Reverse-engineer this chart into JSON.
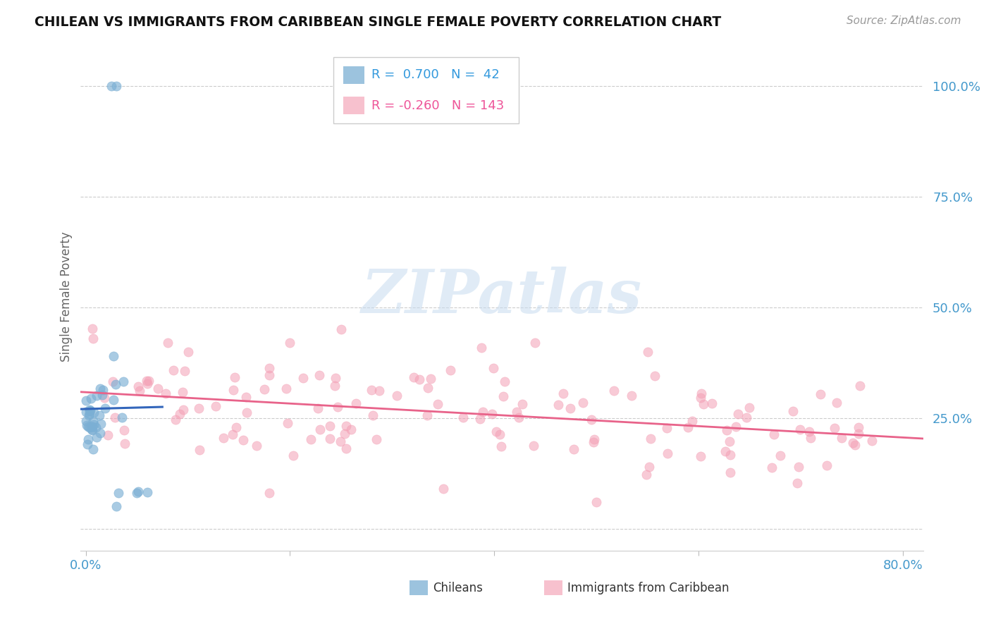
{
  "title": "CHILEAN VS IMMIGRANTS FROM CARIBBEAN SINGLE FEMALE POVERTY CORRELATION CHART",
  "source": "Source: ZipAtlas.com",
  "ylabel": "Single Female Poverty",
  "xlim": [
    -0.005,
    0.82
  ],
  "ylim": [
    -0.05,
    1.1
  ],
  "yticks": [
    0.0,
    0.25,
    0.5,
    0.75,
    1.0
  ],
  "ytick_labels": [
    "",
    "25.0%",
    "50.0%",
    "75.0%",
    "100.0%"
  ],
  "xticks": [
    0.0,
    0.2,
    0.4,
    0.6,
    0.8
  ],
  "xtick_labels": [
    "0.0%",
    "",
    "",
    "",
    "80.0%"
  ],
  "blue_R": 0.7,
  "blue_N": 42,
  "pink_R": -0.26,
  "pink_N": 143,
  "blue_color": "#7BAFD4",
  "pink_color": "#F4A0B5",
  "blue_line_color": "#3366BB",
  "pink_line_color": "#E8638A",
  "background_color": "#FFFFFF",
  "grid_color": "#CCCCCC",
  "title_color": "#111111",
  "legend_label_blue": "Chileans",
  "legend_label_pink": "Immigrants from Caribbean"
}
